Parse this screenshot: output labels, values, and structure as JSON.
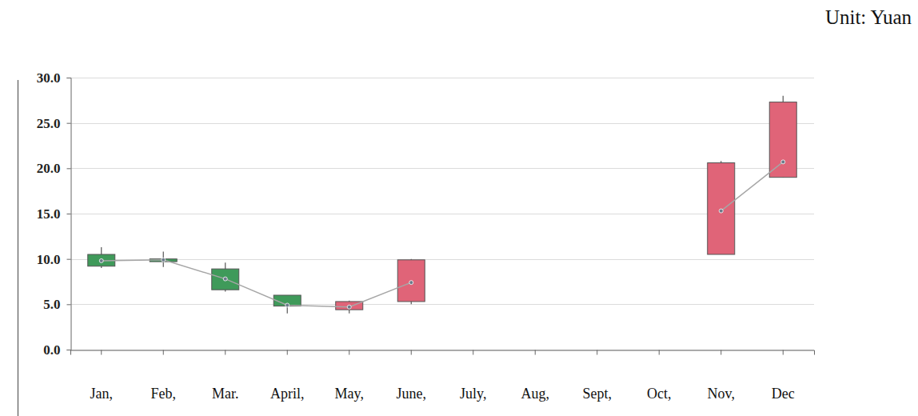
{
  "chart_data": {
    "type": "candlestick",
    "annotation": "Unit: Yuan",
    "categories": [
      "Jan,",
      "Feb,",
      "Mar.",
      "April,",
      "May,",
      "June,",
      "July,",
      "Aug,",
      "Sept,",
      "Oct,",
      "Nov,",
      "Dec"
    ],
    "open": [
      10.5,
      10.0,
      8.9,
      6.0,
      4.4,
      5.3,
      null,
      null,
      null,
      null,
      10.5,
      19.0
    ],
    "close": [
      9.2,
      9.7,
      6.6,
      4.8,
      5.3,
      9.9,
      null,
      null,
      null,
      null,
      20.6,
      27.3
    ],
    "high": [
      11.3,
      10.8,
      9.6,
      6.0,
      5.4,
      10.0,
      null,
      null,
      null,
      null,
      20.8,
      28.0
    ],
    "low": [
      9.0,
      9.1,
      6.4,
      4.0,
      4.0,
      5.0,
      null,
      null,
      null,
      null,
      10.5,
      19.0
    ],
    "colors": [
      "#3f9a5a",
      "#3f9a5a",
      "#3f9a5a",
      "#3f9a5a",
      "#e06478",
      "#e06478",
      null,
      null,
      null,
      null,
      "#e06478",
      "#e06478"
    ],
    "series": [
      {
        "type": "line",
        "color": "#a6a6a6",
        "marker": "circle",
        "values": [
          9.8,
          9.9,
          7.8,
          4.9,
          4.7,
          7.4,
          null,
          null,
          null,
          null,
          15.3,
          20.7
        ]
      }
    ],
    "ylim": [
      0,
      30
    ],
    "yticks": [
      {
        "value": 0,
        "label": "0.0"
      },
      {
        "value": 5,
        "label": "5.0"
      },
      {
        "value": 10,
        "label": "10.0"
      },
      {
        "value": 15,
        "label": "15.0"
      },
      {
        "value": 20,
        "label": "20.0"
      },
      {
        "value": 25,
        "label": "25.0"
      },
      {
        "value": 30,
        "label": "30.0"
      }
    ],
    "grid": true
  }
}
